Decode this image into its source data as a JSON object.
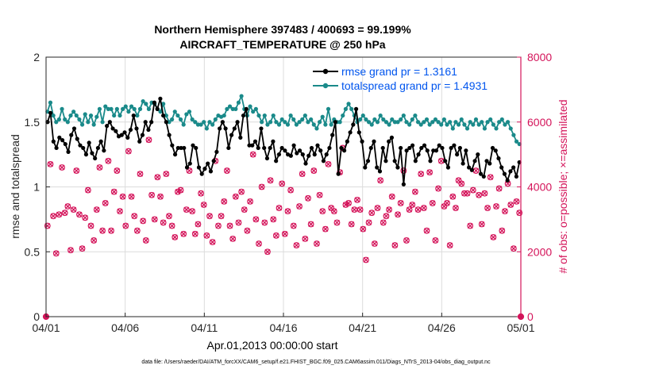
{
  "chart_data": {
    "type": "line",
    "title_line1": "Northern Hemisphere 397483 / 400693 = 99.199%",
    "title_line2": "AIRCRAFT_TEMPERATURE @ 250 hPa",
    "xlabel": "Apr.01,2013 00:00:00 start",
    "ylabel_left": "rmse and totalspread",
    "ylabel_right": "# of obs: o=possible; ×=assimilated",
    "footnote": "data file: /Users/raeder/DAI/ATM_forcXX/CAM6_setup/f.e21.FHIST_BGC.f09_025.CAM6assim.011/Diags_NTrS_2013-04/obs_diag_output.nc",
    "x_ticks": [
      {
        "day": 0,
        "label": "04/01"
      },
      {
        "day": 5,
        "label": "04/06"
      },
      {
        "day": 10,
        "label": "04/11"
      },
      {
        "day": 15,
        "label": "04/16"
      },
      {
        "day": 20,
        "label": "04/21"
      },
      {
        "day": 25,
        "label": "04/26"
      },
      {
        "day": 30,
        "label": "05/01"
      }
    ],
    "xlim": [
      0,
      30
    ],
    "ylim_left": [
      0,
      2
    ],
    "left_ticks": [
      {
        "value": 0,
        "label": "0"
      },
      {
        "value": 0.5,
        "label": "0.5"
      },
      {
        "value": 1,
        "label": "1"
      },
      {
        "value": 1.5,
        "label": "1.5"
      },
      {
        "value": 2,
        "label": "2"
      }
    ],
    "ylim_right": [
      0,
      8000
    ],
    "right_ticks": [
      {
        "value": 0,
        "label": "0"
      },
      {
        "value": 2000,
        "label": "2000"
      },
      {
        "value": 4000,
        "label": "4000"
      },
      {
        "value": 6000,
        "label": "6000"
      },
      {
        "value": 8000,
        "label": "8000"
      }
    ],
    "series": [
      {
        "name": "rmse grand pr = 1.3161",
        "color": "#000000",
        "values": [
          1.5,
          1.57,
          1.35,
          1.3,
          1.38,
          1.36,
          1.33,
          1.27,
          1.4,
          1.45,
          1.37,
          1.32,
          1.3,
          1.25,
          1.34,
          1.26,
          1.22,
          1.3,
          1.35,
          1.28,
          1.47,
          1.5,
          1.45,
          1.43,
          1.39,
          1.4,
          1.42,
          1.38,
          1.44,
          1.55,
          1.45,
          1.35,
          1.4,
          1.5,
          1.44,
          1.5,
          1.65,
          1.6,
          1.68,
          1.55,
          1.5,
          1.4,
          1.32,
          1.25,
          1.3,
          1.3,
          1.3,
          1.15,
          1.18,
          1.32,
          1.3,
          1.15,
          1.1,
          1.14,
          1.18,
          1.12,
          1.2,
          1.27,
          1.45,
          1.5,
          1.45,
          1.3,
          1.4,
          1.45,
          1.5,
          1.38,
          1.55,
          1.6,
          1.32,
          1.32,
          1.35,
          1.3,
          1.45,
          1.3,
          1.22,
          1.3,
          1.35,
          1.2,
          1.25,
          1.3,
          1.28,
          1.25,
          1.24,
          1.32,
          1.26,
          1.28,
          1.25,
          1.18,
          1.24,
          1.3,
          1.25,
          1.32,
          1.28,
          1.2,
          1.25,
          1.3,
          1.4,
          1.5,
          1.1,
          1.3,
          1.28,
          1.35,
          1.42,
          1.48,
          1.6,
          1.42,
          1.35,
          1.15,
          1.2,
          1.3,
          1.35,
          1.15,
          1.12,
          1.3,
          1.2,
          1.35,
          1.38,
          1.2,
          1.15,
          1.3,
          1.02,
          1.28,
          1.3,
          1.32,
          1.2,
          1.25,
          1.3,
          1.32,
          1.28,
          1.2,
          1.28,
          1.28,
          1.32,
          1.3,
          1.2,
          1.15,
          1.3,
          1.32,
          1.25,
          1.3,
          1.18,
          1.28,
          1.15,
          1.13,
          1.2,
          1.25,
          1.1,
          1.08,
          1.2,
          1.18,
          1.3,
          1.28,
          1.22,
          1.15,
          1.1,
          1.05,
          1.12,
          1.15,
          1.08,
          1.19
        ]
      },
      {
        "name": "totalspread grand pr = 1.4931",
        "color": "#1a8a8a",
        "values": [
          1.58,
          1.65,
          1.55,
          1.5,
          1.52,
          1.6,
          1.52,
          1.5,
          1.55,
          1.58,
          1.55,
          1.52,
          1.48,
          1.56,
          1.5,
          1.55,
          1.48,
          1.54,
          1.6,
          1.5,
          1.62,
          1.6,
          1.6,
          1.55,
          1.6,
          1.55,
          1.6,
          1.62,
          1.58,
          1.62,
          1.6,
          1.55,
          1.6,
          1.66,
          1.64,
          1.6,
          1.65,
          1.64,
          1.6,
          1.58,
          1.64,
          1.55,
          1.5,
          1.52,
          1.58,
          1.55,
          1.52,
          1.48,
          1.56,
          1.58,
          1.52,
          1.5,
          1.48,
          1.48,
          1.5,
          1.45,
          1.5,
          1.48,
          1.52,
          1.55,
          1.54,
          1.55,
          1.6,
          1.62,
          1.6,
          1.6,
          1.65,
          1.7,
          1.6,
          1.55,
          1.62,
          1.58,
          1.6,
          1.55,
          1.5,
          1.55,
          1.48,
          1.5,
          1.55,
          1.5,
          1.48,
          1.52,
          1.5,
          1.48,
          1.55,
          1.52,
          1.48,
          1.5,
          1.52,
          1.55,
          1.5,
          1.52,
          1.48,
          1.45,
          1.5,
          1.54,
          1.48,
          1.6,
          1.48,
          1.52,
          1.5,
          1.5,
          1.55,
          1.6,
          1.64,
          1.6,
          1.55,
          1.5,
          1.52,
          1.55,
          1.52,
          1.5,
          1.48,
          1.52,
          1.5,
          1.55,
          1.52,
          1.5,
          1.48,
          1.52,
          1.5,
          1.5,
          1.52,
          1.55,
          1.5,
          1.48,
          1.52,
          1.55,
          1.5,
          1.48,
          1.5,
          1.52,
          1.48,
          1.5,
          1.52,
          1.5,
          1.48,
          1.52,
          1.48,
          1.5,
          1.45,
          1.5,
          1.48,
          1.52,
          1.48,
          1.45,
          1.5,
          1.48,
          1.52,
          1.48,
          1.5,
          1.45,
          1.5,
          1.52,
          1.48,
          1.45,
          1.5,
          1.52,
          1.48,
          1.5,
          1.45,
          1.4,
          1.35,
          1.33
        ]
      },
      {
        "name": "obs possible",
        "color": "#d4145a",
        "values": [
          2800,
          4700,
          3100,
          1950,
          3150,
          4600,
          3200,
          3400,
          2050,
          3300,
          4500,
          3150,
          2100,
          3050,
          3900,
          2800,
          2350,
          3300,
          4600,
          2650,
          3500,
          4800,
          2650,
          3850,
          4500,
          3250,
          3700,
          2800,
          5100,
          3700,
          3100,
          2650,
          4400,
          2950,
          2350,
          5450,
          3750,
          3000,
          4300,
          3700,
          2900,
          4400,
          3100,
          2800,
          2450,
          3850,
          3900,
          2550,
          3300,
          4500,
          3250,
          2550,
          2850,
          3800,
          3450,
          2500,
          3100,
          2300,
          4800,
          2800,
          3100,
          3550,
          4500,
          2800,
          2400,
          3700,
          2900,
          3850,
          3300,
          2650,
          3550,
          5000,
          3000,
          2250,
          4000,
          2900,
          2000,
          4200,
          3000,
          2500,
          3350,
          4100,
          2550,
          3250,
          3900,
          2800,
          2200,
          3400,
          4400,
          2400,
          3650,
          2850,
          4500,
          2250,
          3750,
          3250,
          2700,
          4700,
          3350,
          3250,
          2900,
          4450,
          5200,
          3450,
          3500,
          2850,
          3300,
          3600,
          3300,
          2700,
          1750,
          2900,
          3200,
          2250,
          3350,
          4200,
          2900,
          3100,
          3300,
          3700,
          2200,
          3150,
          3500,
          4500,
          2350,
          3300,
          3450,
          3850,
          3300,
          4400,
          3350,
          2650,
          4450,
          3500,
          2350,
          3950,
          4800,
          3400,
          3500,
          2200,
          3700,
          3350,
          4200,
          4100,
          3800,
          3800,
          2800,
          3900,
          4500,
          3750,
          2850,
          3800,
          3350,
          4300,
          2450,
          3400,
          3950,
          2650,
          3250,
          4100,
          3450,
          2100,
          3550,
          3200
        ]
      }
    ]
  }
}
